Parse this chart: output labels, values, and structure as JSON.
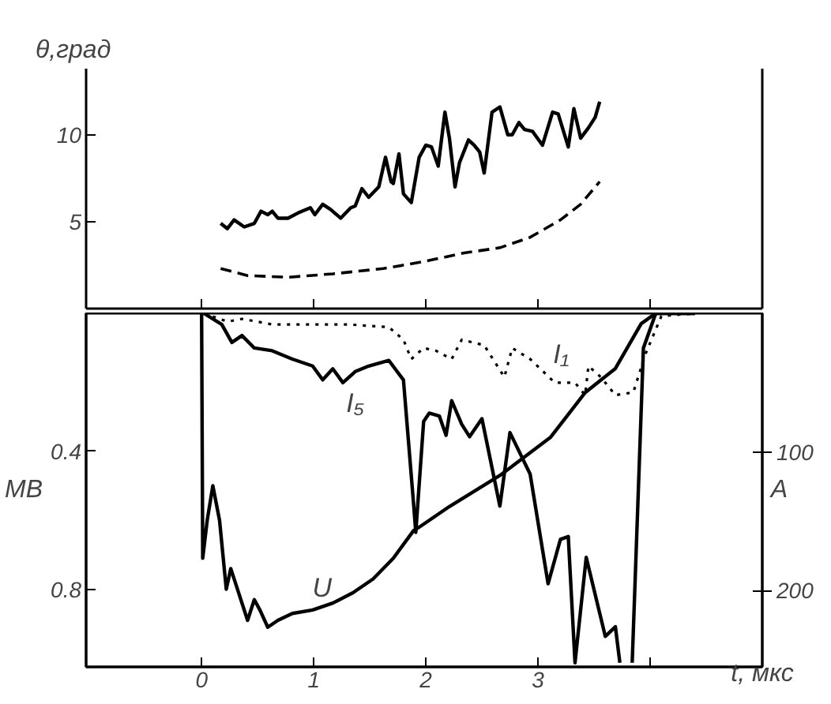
{
  "chart_data": [
    {
      "type": "line",
      "ylabel": "θ,град",
      "xlim": [
        -1.03,
        5.0
      ],
      "ylim": [
        0,
        13.8
      ],
      "xticks": [
        {
          "value": 0,
          "label": null
        },
        {
          "value": 1,
          "label": null
        },
        {
          "value": 2,
          "label": null
        },
        {
          "value": 3,
          "label": null
        },
        {
          "value": 4,
          "label": null
        }
      ],
      "yticks": [
        5,
        10
      ],
      "tick_labels": "y",
      "grid": false,
      "series": [
        {
          "color": "#000000",
          "line_style": "solid",
          "x": [
            0.17,
            0.23,
            0.29,
            0.38,
            0.47,
            0.53,
            0.59,
            0.63,
            0.68,
            0.77,
            0.86,
            0.97,
            1.01,
            1.08,
            1.15,
            1.24,
            1.33,
            1.37,
            1.43,
            1.49,
            1.58,
            1.64,
            1.69,
            1.71,
            1.76,
            1.8,
            1.87,
            1.94,
            2.0,
            2.05,
            2.11,
            2.17,
            2.21,
            2.26,
            2.3,
            2.38,
            2.43,
            2.48,
            2.52,
            2.59,
            2.66,
            2.73,
            2.77,
            2.83,
            2.88,
            2.95,
            3.04,
            3.13,
            3.18,
            3.27,
            3.32,
            3.38,
            3.45,
            3.51,
            3.55
          ],
          "values": [
            4.9,
            4.6,
            5.1,
            4.7,
            4.9,
            5.6,
            5.4,
            5.6,
            5.2,
            5.2,
            5.5,
            5.8,
            5.4,
            6.0,
            5.7,
            5.2,
            5.8,
            5.9,
            6.9,
            6.4,
            7.0,
            8.7,
            7.3,
            7.2,
            8.9,
            6.6,
            6.1,
            8.7,
            9.4,
            9.3,
            8.2,
            11.3,
            9.8,
            7.0,
            8.4,
            9.7,
            9.4,
            9.0,
            7.8,
            11.3,
            11.6,
            10.0,
            10.0,
            10.7,
            10.3,
            10.2,
            9.4,
            11.3,
            11.2,
            9.3,
            11.5,
            9.8,
            10.4,
            11.0,
            11.9
          ]
        },
        {
          "color": "#000000",
          "line_style": "dashed",
          "x": [
            0.17,
            0.41,
            0.77,
            1.17,
            1.62,
            1.98,
            2.34,
            2.66,
            2.93,
            3.2,
            3.38,
            3.55
          ],
          "values": [
            2.3,
            1.9,
            1.8,
            2.0,
            2.3,
            2.7,
            3.2,
            3.5,
            4.1,
            5.1,
            6.0,
            7.3
          ]
        }
      ]
    },
    {
      "type": "line",
      "xlabel": "t, мкс",
      "ylabel": "МВ",
      "y2label": "A",
      "xlim": [
        -1.03,
        5.0
      ],
      "ylim": [
        1.025,
        0
      ],
      "y2lim": [
        255,
        0
      ],
      "xticks": [
        0,
        1,
        2,
        3,
        {
          "value": 4,
          "label": null
        }
      ],
      "yticks": [
        {
          "value": 0.4,
          "label": "0.4"
        },
        {
          "value": 0.8,
          "label": "0.8"
        }
      ],
      "y2ticks": [
        100,
        200
      ],
      "grid": false,
      "series": [
        {
          "name": "U",
          "color": "#000000",
          "line_style": "solid",
          "axis": "y",
          "x": [
            0,
            0.01,
            0.05,
            0.1,
            0.16,
            0.22,
            0.26,
            0.41,
            0.47,
            0.52,
            0.59,
            0.68,
            0.81,
            0.99,
            1.17,
            1.35,
            1.53,
            1.71,
            1.89,
            1.94,
            2.21,
            2.66,
            3.11,
            3.42,
            3.69,
            3.92,
            4.05,
            4.4
          ],
          "values": [
            0,
            0.71,
            0.6,
            0.5,
            0.6,
            0.8,
            0.74,
            0.89,
            0.83,
            0.86,
            0.91,
            0.89,
            0.87,
            0.86,
            0.84,
            0.81,
            0.77,
            0.71,
            0.63,
            0.62,
            0.56,
            0.47,
            0.36,
            0.23,
            0.16,
            0.03,
            0,
            0
          ]
        },
        {
          "name": "I₅",
          "color": "#000000",
          "line_style": "solid",
          "axis": "y2",
          "x": [
            0.02,
            0.18,
            0.27,
            0.36,
            0.47,
            0.63,
            0.81,
            0.99,
            1.08,
            1.17,
            1.26,
            1.37,
            1.49,
            1.67,
            1.8,
            1.89,
            1.91,
            1.98,
            2.03,
            2.12,
            2.18,
            2.23,
            2.32,
            2.39,
            2.5,
            2.66,
            2.75,
            2.93,
            3.09,
            3.2,
            3.27,
            3.33,
            3.43,
            3.6,
            3.69,
            3.73,
            3.78,
            3.84,
            3.94,
            4.05,
            4.4
          ],
          "values": [
            0,
            8,
            21,
            16,
            25,
            27,
            33,
            38,
            48,
            40,
            50,
            42,
            38,
            34,
            48,
            137,
            158,
            78,
            72,
            74,
            88,
            63,
            80,
            89,
            76,
            139,
            86,
            116,
            195,
            163,
            161,
            252,
            176,
            233,
            226,
            252,
            null,
            252,
            25,
            0,
            0
          ]
        },
        {
          "name": "I₁",
          "color": "#000000",
          "line_style": "dotted",
          "axis": "y2",
          "x": [
            0.02,
            0.23,
            0.36,
            0.63,
            0.95,
            1.31,
            1.67,
            1.8,
            1.87,
            1.98,
            2.09,
            2.23,
            2.32,
            2.52,
            2.7,
            2.77,
            2.93,
            3.15,
            3.33,
            3.42,
            3.45,
            3.56,
            3.69,
            3.85,
            3.96,
            4.1,
            4.4
          ],
          "values": [
            0,
            6,
            4,
            8,
            8,
            8,
            10,
            19,
            33,
            25,
            27,
            33,
            19,
            23,
            46,
            25,
            33,
            50,
            50,
            59,
            38,
            46,
            59,
            57,
            29,
            2,
            0
          ]
        }
      ]
    }
  ]
}
